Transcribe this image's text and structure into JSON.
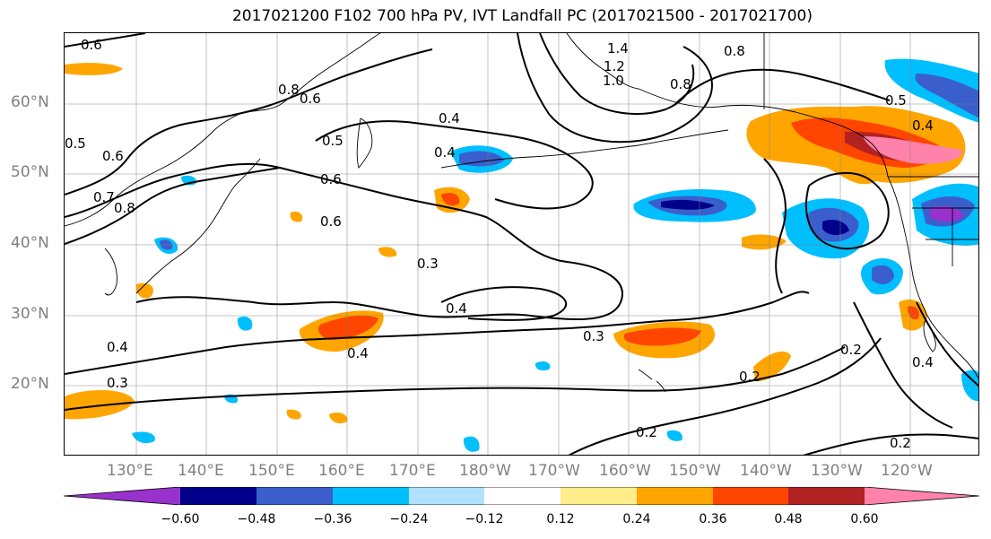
{
  "title": "2017021200 F102 700 hPa PV, IVT Landfall PC (2017021500 - 2017021700)",
  "lat_labels": [
    "60°N",
    "50°N",
    "40°N",
    "30°N",
    "20°N"
  ],
  "lon_labels": [
    "130°E",
    "140°E",
    "150°E",
    "160°E",
    "170°E",
    "180°W",
    "170°W",
    "160°W",
    "150°W",
    "140°W",
    "130°W",
    "120°W"
  ],
  "contour_labels": [
    "0.6",
    "0.8",
    "0.6",
    "0.5",
    "0.6",
    "0.7",
    "0.8",
    "0.6",
    "0.5",
    "0.6",
    "0.4",
    "0.4",
    "1.4",
    "1.2",
    "1.0",
    "0.8",
    "0.8",
    "0.5",
    "0.4",
    "0.3",
    "0.4",
    "0.4",
    "0.3",
    "0.4",
    "0.3",
    "0.2",
    "0.2",
    "0.4",
    "0.2",
    "0.2"
  ],
  "colorbar": {
    "colors": [
      "#9932cc",
      "#00008b",
      "#3a5fcd",
      "#00bfff",
      "#b0e2ff",
      "#ffffff",
      "#ffffff",
      "#ffec8b",
      "#ffa500",
      "#ff4500",
      "#b22222",
      "#ff82ab"
    ],
    "ticks": [
      "−0.60",
      "−0.48",
      "−0.36",
      "−0.24",
      "−0.12",
      "0.12",
      "0.24",
      "0.36",
      "0.48",
      "0.60"
    ]
  }
}
